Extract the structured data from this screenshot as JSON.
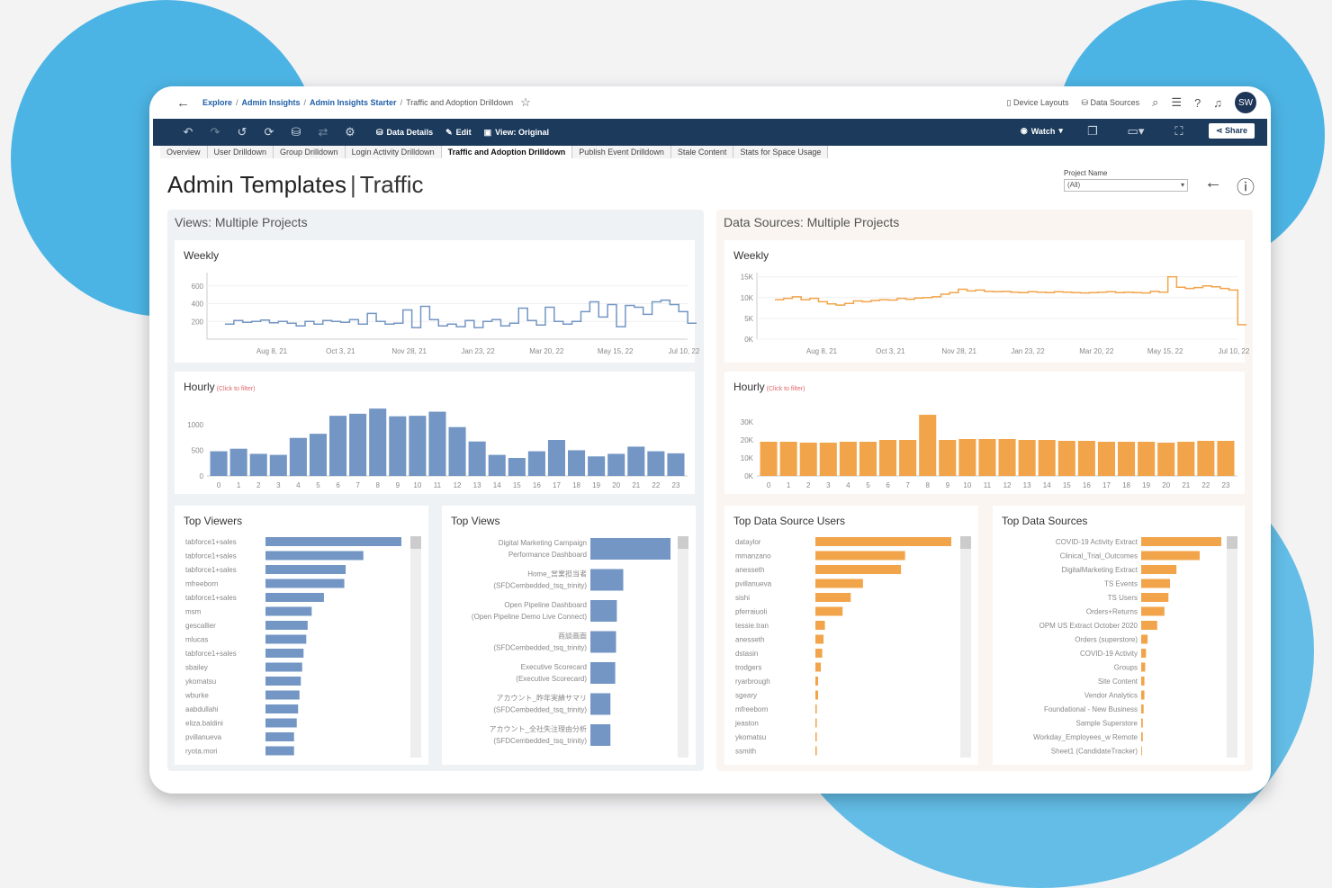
{
  "breadcrumb": {
    "items": [
      "Explore",
      "Admin Insights",
      "Admin Insights Starter"
    ],
    "current": "Traffic and Adoption Drilldown"
  },
  "topbar": {
    "device_layouts": "Device Layouts",
    "data_sources": "Data Sources",
    "avatar": "SW"
  },
  "toolbar": {
    "data_details": "Data Details",
    "edit": "Edit",
    "view": "View: Original",
    "watch": "Watch",
    "share": "Share"
  },
  "tabs": [
    "Overview",
    "User Drilldown",
    "Group Drilldown",
    "Login Activity Drilldown",
    "Traffic and Adoption Drilldown",
    "Publish Event Drilldown",
    "Stale Content",
    "Stats for Space Usage"
  ],
  "active_tab": "Traffic and Adoption Drilldown",
  "title": {
    "main": "Admin Templates",
    "sub": "Traffic"
  },
  "filter": {
    "label": "Project Name",
    "value": "(All)"
  },
  "sections": {
    "left": "Views: Multiple Projects",
    "right": "Data Sources: Multiple Projects"
  },
  "colors": {
    "blue": "#7396c4",
    "orange": "#f2a44a",
    "navy": "#1b3a5c"
  },
  "chart_data": [
    {
      "type": "line",
      "title": "Weekly",
      "color": "#7396c4",
      "x_ticks": [
        "Aug 8, 21",
        "Oct 3, 21",
        "Nov 28, 21",
        "Jan 23, 22",
        "Mar 20, 22",
        "May 15, 22",
        "Jul 10, 22"
      ],
      "y_ticks": [
        200,
        400,
        600
      ],
      "ylim": [
        0,
        750
      ],
      "values": [
        170,
        210,
        190,
        200,
        215,
        185,
        200,
        180,
        150,
        200,
        170,
        210,
        200,
        190,
        220,
        170,
        290,
        200,
        170,
        180,
        330,
        130,
        370,
        220,
        150,
        170,
        140,
        210,
        130,
        200,
        220,
        150,
        180,
        350,
        210,
        160,
        360,
        200,
        170,
        200,
        310,
        420,
        250,
        390,
        140,
        380,
        360,
        280,
        420,
        440,
        390,
        310,
        180
      ]
    },
    {
      "type": "line",
      "title": "Weekly",
      "color": "#f2a44a",
      "x_ticks": [
        "Aug 8, 21",
        "Oct 3, 21",
        "Nov 28, 21",
        "Jan 23, 22",
        "Mar 20, 22",
        "May 15, 22",
        "Jul 10, 22"
      ],
      "y_ticks": [
        "0K",
        "5K",
        "10K",
        "15K"
      ],
      "ylim": [
        0,
        16000
      ],
      "values": [
        9500,
        9800,
        10200,
        9500,
        9800,
        9000,
        8500,
        8200,
        8600,
        9200,
        9000,
        9300,
        9500,
        9400,
        9800,
        9600,
        9900,
        10000,
        10200,
        10800,
        11200,
        12000,
        11600,
        11800,
        11500,
        11400,
        11500,
        11300,
        11200,
        11400,
        11300,
        11200,
        11400,
        11300,
        11200,
        11100,
        11200,
        11300,
        11400,
        11200,
        11300,
        11200,
        11100,
        11500,
        11300,
        15000,
        12500,
        12200,
        12400,
        12800,
        12600,
        12200,
        11800,
        3500
      ]
    },
    {
      "type": "bar",
      "title": "Hourly",
      "subtitle": "(Click to filter)",
      "color": "#7396c4",
      "categories": [
        "0",
        "1",
        "2",
        "3",
        "4",
        "5",
        "6",
        "7",
        "8",
        "9",
        "10",
        "11",
        "12",
        "13",
        "14",
        "15",
        "16",
        "17",
        "18",
        "19",
        "20",
        "21",
        "22",
        "23"
      ],
      "y_ticks": [
        0,
        500,
        1000
      ],
      "ylim": [
        0,
        1400
      ],
      "values": [
        480,
        530,
        430,
        410,
        740,
        820,
        1170,
        1210,
        1310,
        1160,
        1170,
        1250,
        950,
        670,
        410,
        350,
        480,
        700,
        500,
        380,
        430,
        570,
        480,
        440
      ]
    },
    {
      "type": "bar",
      "title": "Hourly",
      "subtitle": "(Click to filter)",
      "color": "#f2a44a",
      "categories": [
        "0",
        "1",
        "2",
        "3",
        "4",
        "5",
        "6",
        "7",
        "8",
        "9",
        "10",
        "11",
        "12",
        "13",
        "14",
        "15",
        "16",
        "17",
        "18",
        "19",
        "20",
        "21",
        "22",
        "23"
      ],
      "y_ticks": [
        "0K",
        "10K",
        "20K",
        "30K"
      ],
      "ylim": [
        0,
        40000
      ],
      "values": [
        19000,
        19000,
        18500,
        18500,
        19000,
        19000,
        20000,
        20000,
        34000,
        20000,
        20500,
        20500,
        20500,
        20000,
        20000,
        19500,
        19500,
        19000,
        19000,
        19000,
        18500,
        19000,
        19500,
        19500
      ]
    },
    {
      "type": "bar",
      "title": "Top Viewers",
      "color": "#7396c4",
      "categories": [
        "tabforce1+sales",
        "tabforce1+sales",
        "tabforce1+sales",
        "mfreeborn",
        "tabforce1+sales",
        "msm",
        "gescallier",
        "mlucas",
        "tabforce1+sales",
        "sbailey",
        "ykomatsu",
        "wburke",
        "aabdullahi",
        "eliza.baldini",
        "pvillanueva",
        "ryota.mori"
      ],
      "values": [
        100,
        72,
        59,
        58,
        43,
        34,
        31,
        30,
        28,
        27,
        26,
        25,
        24,
        23,
        21,
        21
      ]
    },
    {
      "type": "bar",
      "title": "Top Views",
      "color": "#7396c4",
      "categories": [
        [
          "Digital Marketing Campaign",
          "Performance Dashboard"
        ],
        [
          "Home_営業担当者",
          "(SFDCembedded_tsq_trinity)"
        ],
        [
          "Open Pipeline Dashboard",
          "(Open Pipeline Demo Live Connect)"
        ],
        [
          "商談画面",
          "(SFDCembedded_tsq_trinity)"
        ],
        [
          "Executive Scorecard",
          "(Executive Scorecard)"
        ],
        [
          "アカウント_昨年実績サマリ",
          "(SFDCembedded_tsq_trinity)"
        ],
        [
          "アカウント_全社失注理由分析",
          "(SFDCembedded_tsq_trinity)"
        ]
      ],
      "values": [
        100,
        41,
        33,
        32,
        31,
        25,
        25
      ]
    },
    {
      "type": "bar",
      "title": "Top Data Source Users",
      "color": "#f2a44a",
      "categories": [
        "dataylor",
        "mmanzano",
        "anesseth",
        "pvillanueva",
        "sishi",
        "pferraiuoli",
        "tessie.tran",
        "anesseth",
        "dstasin",
        "trodgers",
        "ryarbrough",
        "sgeary",
        "mfreeborn",
        "jeaston",
        "ykomatsu",
        "ssmith"
      ],
      "values": [
        100,
        66,
        63,
        35,
        26,
        20,
        7,
        6,
        5,
        4,
        2,
        2,
        1,
        1,
        1,
        1
      ]
    },
    {
      "type": "bar",
      "title": "Top Data Sources",
      "color": "#f2a44a",
      "categories": [
        "COVID-19 Activity Extract",
        "Clinical_Trial_Outcomes",
        "DigitalMarketing Extract",
        "TS Events",
        "TS Users",
        "Orders+Returns",
        "OPM US Extract October 2020",
        "Orders (superstore)",
        "COVID-19 Activity",
        "Groups",
        "Site Content",
        "Vendor Analytics",
        "Foundational - New Business",
        "Sample Superstore",
        "Workday_Employees_w Remote",
        "Sheet1 (CandidateTracker)"
      ],
      "values": [
        100,
        73,
        44,
        36,
        34,
        29,
        20,
        8,
        6,
        5,
        4,
        4,
        3,
        2,
        2,
        1
      ]
    }
  ]
}
